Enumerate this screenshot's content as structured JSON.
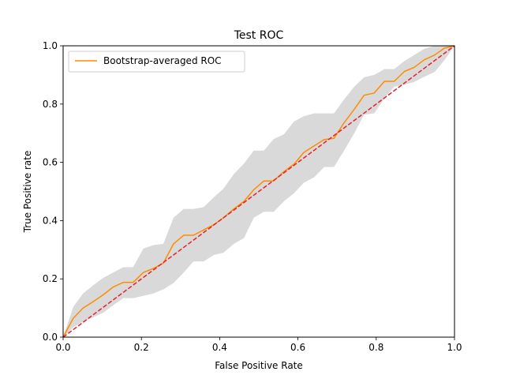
{
  "chart_data": {
    "type": "line",
    "title": "Test ROC",
    "xlabel": "False Positive Rate",
    "ylabel": "True Positive rate",
    "xlim": [
      0.0,
      1.0
    ],
    "ylim": [
      0.0,
      1.0
    ],
    "xticks": [
      "0.0",
      "0.2",
      "0.4",
      "0.6",
      "0.8",
      "1.0"
    ],
    "yticks": [
      "0.0",
      "0.2",
      "0.4",
      "0.6",
      "0.8",
      "1.0"
    ],
    "grid": false,
    "legend": {
      "position": "top-left",
      "entries": [
        "Bootstrap-averaged ROC"
      ]
    },
    "series": [
      {
        "name": "Bootstrap-averaged ROC",
        "color": "#ff8c00",
        "style": "solid",
        "x": [
          0.0,
          0.026,
          0.051,
          0.077,
          0.103,
          0.128,
          0.154,
          0.179,
          0.205,
          0.231,
          0.256,
          0.282,
          0.308,
          0.333,
          0.359,
          0.385,
          0.41,
          0.436,
          0.462,
          0.487,
          0.513,
          0.538,
          0.564,
          0.59,
          0.615,
          0.641,
          0.667,
          0.692,
          0.718,
          0.744,
          0.769,
          0.795,
          0.821,
          0.846,
          0.872,
          0.897,
          0.923,
          0.949,
          0.974,
          1.0
        ],
        "y": [
          0.0,
          0.065,
          0.1,
          0.122,
          0.146,
          0.172,
          0.188,
          0.188,
          0.222,
          0.236,
          0.254,
          0.32,
          0.35,
          0.35,
          0.368,
          0.386,
          0.41,
          0.44,
          0.466,
          0.506,
          0.536,
          0.536,
          0.568,
          0.594,
          0.634,
          0.656,
          0.678,
          0.682,
          0.736,
          0.782,
          0.83,
          0.838,
          0.878,
          0.878,
          0.912,
          0.926,
          0.952,
          0.968,
          0.992,
          1.0
        ]
      },
      {
        "name": "",
        "color": "#e8202a",
        "style": "dashed",
        "x": [
          0.0,
          1.0
        ],
        "y": [
          0.0,
          1.0
        ]
      }
    ],
    "confidence_band": {
      "color": "#d9d9d9",
      "x": [
        0.0,
        0.026,
        0.051,
        0.077,
        0.103,
        0.128,
        0.154,
        0.179,
        0.205,
        0.231,
        0.256,
        0.282,
        0.308,
        0.333,
        0.359,
        0.385,
        0.41,
        0.436,
        0.462,
        0.487,
        0.513,
        0.538,
        0.564,
        0.59,
        0.615,
        0.641,
        0.667,
        0.692,
        0.718,
        0.744,
        0.769,
        0.795,
        0.821,
        0.846,
        0.872,
        0.897,
        0.923,
        0.949,
        0.974,
        1.0
      ],
      "upper": [
        0.0,
        0.104,
        0.15,
        0.178,
        0.204,
        0.222,
        0.24,
        0.24,
        0.304,
        0.316,
        0.32,
        0.41,
        0.44,
        0.44,
        0.446,
        0.48,
        0.51,
        0.56,
        0.596,
        0.64,
        0.64,
        0.68,
        0.696,
        0.74,
        0.758,
        0.768,
        0.768,
        0.768,
        0.816,
        0.86,
        0.892,
        0.9,
        0.92,
        0.92,
        0.948,
        0.968,
        0.99,
        1.0,
        1.0,
        1.0
      ],
      "lower": [
        0.0,
        0.034,
        0.054,
        0.068,
        0.084,
        0.11,
        0.134,
        0.134,
        0.142,
        0.15,
        0.164,
        0.186,
        0.222,
        0.26,
        0.26,
        0.282,
        0.29,
        0.32,
        0.34,
        0.41,
        0.43,
        0.43,
        0.466,
        0.494,
        0.53,
        0.548,
        0.584,
        0.584,
        0.64,
        0.7,
        0.764,
        0.768,
        0.82,
        0.86,
        0.866,
        0.876,
        0.894,
        0.91,
        0.95,
        1.0
      ]
    }
  }
}
